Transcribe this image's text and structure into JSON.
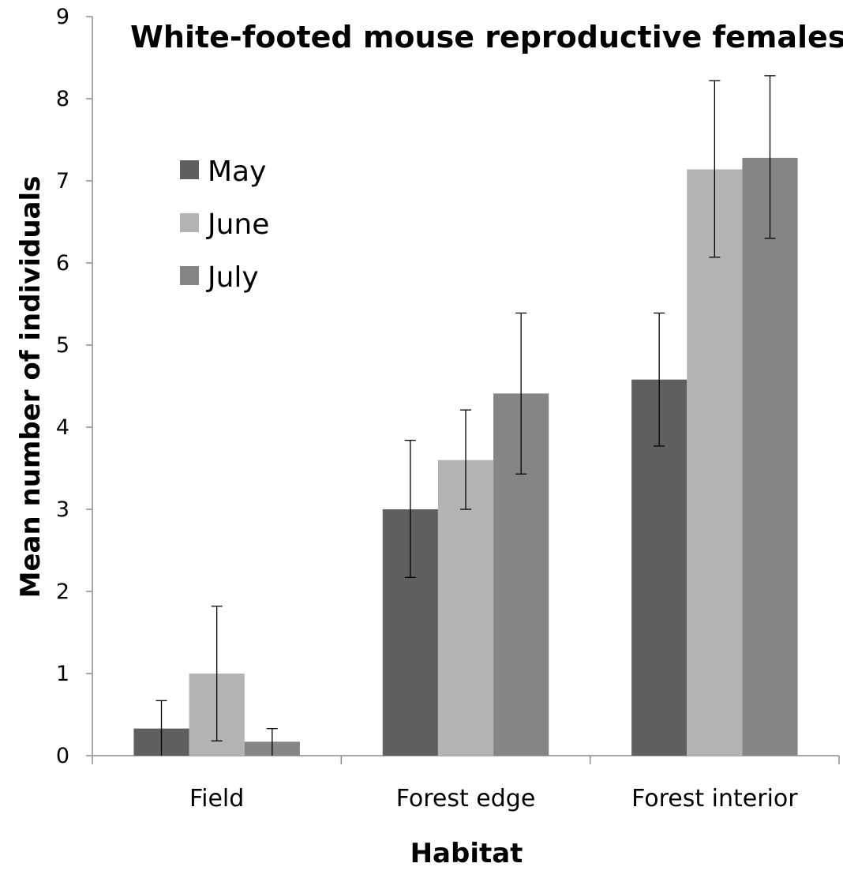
{
  "chart_data": {
    "type": "bar",
    "title": "White-footed mouse reproductive females",
    "xlabel": "Habitat",
    "ylabel": "Mean number of individuals",
    "ylim": [
      0,
      9
    ],
    "yticks": [
      0,
      1,
      2,
      3,
      4,
      5,
      6,
      7,
      8,
      9
    ],
    "categories": [
      "Field",
      "Forest edge",
      "Forest interior"
    ],
    "series": [
      {
        "name": "May",
        "color": "#5f5f5f",
        "values": [
          0.33,
          3.0,
          4.58
        ],
        "error_low": [
          0.0,
          2.17,
          3.77
        ],
        "error_high": [
          0.67,
          3.84,
          5.39
        ]
      },
      {
        "name": "June",
        "color": "#b3b3b3",
        "values": [
          1.0,
          3.6,
          7.14
        ],
        "error_low": [
          0.18,
          3.0,
          6.07
        ],
        "error_high": [
          1.82,
          4.21,
          8.22
        ]
      },
      {
        "name": "July",
        "color": "#858585",
        "values": [
          0.17,
          4.41,
          7.28
        ],
        "error_low": [
          0.0,
          3.43,
          6.3
        ],
        "error_high": [
          0.33,
          5.39,
          8.28
        ]
      }
    ],
    "legend_position": "top-left",
    "grid": false
  }
}
